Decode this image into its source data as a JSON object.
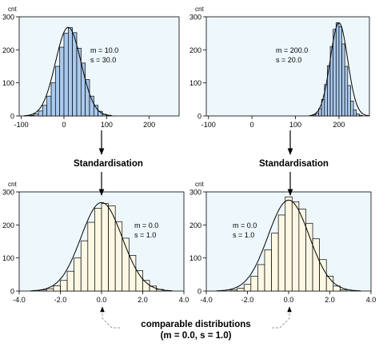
{
  "chart_data": [
    {
      "id": "tl",
      "type": "bar",
      "ylabel": "cnt",
      "xlim": [
        -105,
        270
      ],
      "ylim": [
        0,
        300
      ],
      "xticks": [
        -100,
        0,
        100,
        200
      ],
      "xtick_labels": [
        "-100",
        "0",
        "100",
        "200"
      ],
      "yticks": [
        0,
        100,
        200,
        300
      ],
      "ytick_labels": [
        "0",
        "100",
        "200",
        "300"
      ],
      "bin_start": -80,
      "bin_width": 10,
      "values": [
        2,
        6,
        15,
        32,
        60,
        100,
        150,
        208,
        250,
        267,
        252,
        205,
        160,
        110,
        60,
        32,
        14,
        5,
        2
      ],
      "fit_curve": {
        "mean": 10,
        "sd": 30,
        "peak": 268
      },
      "stats": [
        "m = 10.0",
        "s = 30.0"
      ],
      "fill": "#a9c9ee",
      "plot_bg": "#eef8fc"
    },
    {
      "id": "tr",
      "type": "bar",
      "ylabel": "cnt",
      "xlim": [
        -105,
        270
      ],
      "ylim": [
        0,
        300
      ],
      "xticks": [
        -100,
        0,
        100,
        200
      ],
      "xtick_labels": [
        "-100",
        "0",
        "100",
        "200"
      ],
      "yticks": [
        0,
        100,
        200,
        300
      ],
      "ytick_labels": [
        "0",
        "100",
        "200",
        "300"
      ],
      "bin_start": 140,
      "bin_width": 6.67,
      "values": [
        3,
        8,
        22,
        50,
        95,
        152,
        210,
        262,
        282,
        270,
        218,
        150,
        92,
        45,
        18,
        6,
        2
      ],
      "fit_curve": {
        "mean": 200,
        "sd": 20,
        "peak": 282
      },
      "stats": [
        "m = 200.0",
        "s = 20.0"
      ],
      "fill": "#a9c9ee",
      "plot_bg": "#eef8fc"
    },
    {
      "id": "bl",
      "type": "bar",
      "ylabel": "cnt",
      "xlim": [
        -4,
        4
      ],
      "ylim": [
        0,
        300
      ],
      "xticks": [
        -4,
        -2,
        0,
        2,
        4
      ],
      "xtick_labels": [
        "-4.0",
        "-2.0",
        "0.0",
        "2.0",
        "4.0"
      ],
      "yticks": [
        0,
        100,
        200,
        300
      ],
      "ytick_labels": [
        "0",
        "100",
        "200",
        "300"
      ],
      "bin_start": -3,
      "bin_width": 0.3333,
      "values": [
        3,
        7,
        16,
        32,
        60,
        100,
        152,
        208,
        250,
        265,
        258,
        210,
        160,
        108,
        62,
        32,
        15,
        5
      ],
      "fit_curve": {
        "mean": 0,
        "sd": 1,
        "peak": 268
      },
      "stats": [
        "m = 0.0",
        "s = 1.0"
      ],
      "fill": "#fcf8e4",
      "plot_bg": "#eef8fc"
    },
    {
      "id": "br",
      "type": "bar",
      "ylabel": "cnt",
      "xlim": [
        -4,
        4
      ],
      "ylim": [
        0,
        300
      ],
      "xticks": [
        -4,
        -2,
        0,
        2,
        4
      ],
      "xtick_labels": [
        "-4.0",
        "-2.0",
        "0.0",
        "2.0",
        "4.0"
      ],
      "yticks": [
        0,
        100,
        200,
        300
      ],
      "ytick_labels": [
        "0",
        "100",
        "200",
        "300"
      ],
      "bin_start": -2.833,
      "bin_width": 0.3333,
      "values": [
        3,
        8,
        20,
        45,
        80,
        125,
        175,
        230,
        285,
        270,
        248,
        205,
        158,
        95,
        45,
        15,
        4
      ],
      "fit_curve": {
        "mean": 0,
        "sd": 1,
        "peak": 275
      },
      "stats": [
        "m = 0.0",
        "s = 1.0"
      ],
      "fill": "#fcf8e4",
      "plot_bg": "#eef8fc"
    }
  ],
  "labels": {
    "standardisation_left": "Standardisation",
    "standardisation_right": "Standardisation",
    "comparable_line1": "comparable distributions",
    "comparable_line2": "(m = 0.0, s = 1.0)"
  },
  "colors": {
    "axis": "#000000",
    "bar_stroke": "#000000",
    "arrow": "#000000",
    "connector": "#9a9a9a"
  }
}
